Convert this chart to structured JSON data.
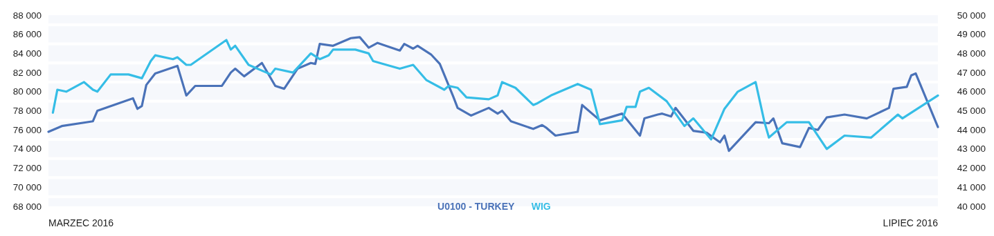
{
  "chart_data": {
    "type": "line",
    "annotations": [
      "MARZEC 2016",
      "LIPIEC 2016"
    ],
    "bands": [
      {
        "axis": "y",
        "from": 68000,
        "to": 68850,
        "color": "#f6f8fc"
      },
      {
        "axis": "y",
        "from": 69150,
        "to": 70850,
        "color": "#f6f8fc"
      },
      {
        "axis": "y",
        "from": 71150,
        "to": 72850,
        "color": "#f6f8fc"
      },
      {
        "axis": "y",
        "from": 73150,
        "to": 74850,
        "color": "#f6f8fc"
      },
      {
        "axis": "y",
        "from": 75150,
        "to": 76850,
        "color": "#f6f8fc"
      },
      {
        "axis": "y",
        "from": 77150,
        "to": 78850,
        "color": "#f6f8fc"
      },
      {
        "axis": "y",
        "from": 79150,
        "to": 80850,
        "color": "#f6f8fc"
      },
      {
        "axis": "y",
        "from": 81150,
        "to": 82850,
        "color": "#f6f8fc"
      },
      {
        "axis": "y",
        "from": 83150,
        "to": 84850,
        "color": "#f6f8fc"
      },
      {
        "axis": "y",
        "from": 85150,
        "to": 86850,
        "color": "#f6f8fc"
      },
      {
        "axis": "y",
        "from": 87150,
        "to": 88000,
        "color": "#f6f8fc"
      }
    ],
    "categories": [
      null,
      null,
      null,
      null,
      null,
      null,
      null,
      null,
      null,
      null,
      null,
      null,
      null,
      null,
      null,
      null,
      null,
      null,
      null,
      null,
      null,
      null,
      null,
      null,
      null,
      null,
      null,
      null,
      null,
      null,
      null,
      null,
      null,
      null,
      null,
      null,
      null,
      null,
      null,
      null,
      null,
      null,
      null,
      null,
      null,
      null,
      null,
      null,
      null,
      null,
      null,
      null,
      null,
      null,
      null,
      null,
      null,
      null,
      null,
      null,
      null,
      null,
      null,
      null,
      null,
      null,
      null,
      null,
      null,
      null,
      null,
      null,
      null,
      null,
      null,
      null,
      null,
      null,
      null,
      null,
      null,
      null,
      null,
      null,
      null,
      null,
      null,
      null,
      null,
      null,
      null,
      null,
      null,
      null,
      null,
      null,
      null,
      null,
      null,
      null,
      null,
      null,
      null,
      null,
      null,
      null,
      null,
      null,
      null,
      null,
      null,
      null,
      null,
      null,
      null,
      null,
      null,
      null,
      null,
      null,
      null,
      null,
      null,
      null,
      null,
      null,
      null,
      null,
      null,
      null,
      null,
      null,
      null,
      null,
      null,
      null,
      null,
      null,
      null,
      null,
      null,
      null,
      null,
      null,
      null,
      null,
      null,
      null,
      null,
      null,
      null,
      null,
      null,
      null,
      null,
      null,
      null,
      null,
      null,
      null,
      null,
      null,
      null,
      null,
      null,
      null,
      null,
      null,
      null,
      null,
      null,
      null,
      null,
      null,
      null,
      null,
      null,
      null,
      null,
      null,
      null,
      null,
      null,
      null,
      null,
      null,
      null,
      null,
      null,
      null,
      null,
      null,
      null,
      null,
      null,
      null,
      null,
      null,
      null,
      null,
      null
    ],
    "ylim": [
      68000,
      88000
    ],
    "yticks": [
      {
        "value": 68000,
        "label": "68 000"
      },
      {
        "value": 70000,
        "label": "70 000"
      },
      {
        "value": 72000,
        "label": "72 000"
      },
      {
        "value": 74000,
        "label": "74 000"
      },
      {
        "value": 76000,
        "label": "76 000"
      },
      {
        "value": 78000,
        "label": "78 000"
      },
      {
        "value": 80000,
        "label": "80 000"
      },
      {
        "value": 82000,
        "label": "82 000"
      },
      {
        "value": 84000,
        "label": "84 000"
      },
      {
        "value": 86000,
        "label": "86 000"
      },
      {
        "value": 88000,
        "label": "88 000"
      }
    ],
    "y2lim": [
      40000,
      50000
    ],
    "y2ticks": [
      {
        "value": 40000,
        "label": "40 000"
      },
      {
        "value": 41000,
        "label": "41 000"
      },
      {
        "value": 42000,
        "label": "42 000"
      },
      {
        "value": 43000,
        "label": "43 000"
      },
      {
        "value": 44000,
        "label": "44 000"
      },
      {
        "value": 45000,
        "label": "45 000"
      },
      {
        "value": 46000,
        "label": "46 000"
      },
      {
        "value": 47000,
        "label": "47 000"
      },
      {
        "value": 48000,
        "label": "48 000"
      },
      {
        "value": 49000,
        "label": "49 000"
      },
      {
        "value": 50000,
        "label": "50 000"
      }
    ],
    "legend": "bottom",
    "line_style": "solid",
    "series": [
      {
        "name": "U0100 - TURKEY",
        "color": "#4a72b8",
        "values": [
          75800,
          null,
          null,
          76400,
          null,
          null,
          null,
          null,
          null,
          null,
          76900,
          78000,
          null,
          null,
          null,
          null,
          null,
          null,
          null,
          79300,
          78200,
          78500,
          80700,
          null,
          81900,
          null,
          null,
          null,
          null,
          82700,
          null,
          79600,
          null,
          80600,
          null,
          null,
          null,
          null,
          null,
          80600,
          null,
          82000,
          82400,
          null,
          81600,
          null,
          null,
          null,
          83000,
          null,
          null,
          80600,
          null,
          80300,
          null,
          null,
          82400,
          null,
          null,
          83000,
          82900,
          85000,
          null,
          null,
          84800,
          null,
          null,
          null,
          85600,
          null,
          85700,
          null,
          84600,
          null,
          85100,
          null,
          null,
          null,
          null,
          84300,
          85000,
          null,
          84500,
          84800,
          null,
          null,
          83900,
          null,
          82900,
          null,
          null,
          79500,
          78300,
          null,
          null,
          77500,
          null,
          null,
          null,
          78300,
          null,
          77700,
          78000,
          null,
          76900,
          null,
          null,
          null,
          null,
          76100,
          null,
          76500,
          76200,
          null,
          75400,
          null,
          null,
          null,
          null,
          75800,
          78600,
          null,
          null,
          null,
          77000,
          null,
          null,
          null,
          null,
          77700,
          null,
          null,
          null,
          75400,
          77200,
          null,
          null,
          77600,
          77700,
          null,
          77400,
          78300,
          null,
          null,
          null,
          75900,
          null,
          null,
          75700,
          null,
          null,
          74700,
          75400,
          73800,
          null,
          null,
          null,
          null,
          null,
          76800,
          null,
          null,
          76700,
          77200,
          null,
          74600,
          null,
          null,
          null,
          74200,
          null,
          76200,
          null,
          76000,
          null,
          77300,
          null,
          null,
          null,
          77600,
          null,
          null,
          null,
          null,
          77200,
          null,
          null,
          null,
          null,
          78300,
          80300,
          null,
          null,
          80500,
          81700,
          81900,
          null,
          null,
          null,
          null,
          76300
        ]
      },
      {
        "name": "WIG",
        "color": "#35bde6",
        "axis": "y2",
        "values": [
          null,
          44900,
          46100,
          null,
          46000,
          null,
          null,
          null,
          46500,
          null,
          46100,
          46000,
          null,
          null,
          46900,
          null,
          null,
          null,
          46900,
          null,
          null,
          46700,
          null,
          47600,
          47900,
          null,
          null,
          null,
          47700,
          47800,
          null,
          47400,
          47400,
          null,
          null,
          null,
          null,
          null,
          null,
          null,
          48700,
          48200,
          48400,
          null,
          null,
          47400,
          null,
          null,
          null,
          null,
          46900,
          47200,
          null,
          null,
          null,
          47000,
          null,
          null,
          null,
          48000,
          null,
          47700,
          null,
          47900,
          48200,
          null,
          null,
          null,
          null,
          48200,
          null,
          null,
          48000,
          47600,
          null,
          null,
          null,
          null,
          null,
          47200,
          null,
          null,
          47400,
          null,
          null,
          46600,
          null,
          null,
          null,
          46100,
          46300,
          null,
          46200,
          null,
          45700,
          null,
          null,
          null,
          null,
          45600,
          null,
          45800,
          46500,
          null,
          null,
          46200,
          null,
          null,
          null,
          45300,
          45400,
          null,
          null,
          45800,
          null,
          null,
          null,
          null,
          null,
          46400,
          null,
          null,
          46100,
          null,
          44300,
          null,
          null,
          null,
          null,
          44500,
          45200,
          null,
          45200,
          46000,
          null,
          46200,
          null,
          null,
          null,
          45500,
          null,
          null,
          null,
          44200,
          null,
          44600,
          null,
          null,
          null,
          43500,
          null,
          null,
          45100,
          null,
          null,
          46000,
          null,
          null,
          null,
          46500,
          null,
          44400,
          43600,
          null,
          null,
          null,
          44400,
          null,
          null,
          null,
          null,
          44400,
          null,
          43700,
          null,
          43000,
          null,
          null,
          null,
          43700,
          null,
          null,
          null,
          null,
          null,
          43600,
          null,
          null,
          null,
          null,
          null,
          44800,
          44600,
          null,
          null,
          null,
          null,
          null,
          null,
          null,
          45800
        ]
      }
    ]
  }
}
